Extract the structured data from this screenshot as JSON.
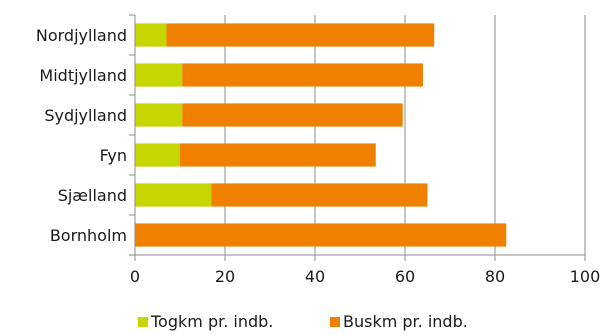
{
  "chart_data": {
    "type": "bar",
    "orientation": "horizontal",
    "stacked": true,
    "categories": [
      "Nordjylland",
      "Midtjylland",
      "Sydjylland",
      "Fyn",
      "Sjælland",
      "Bornholm"
    ],
    "series": [
      {
        "name": "Togkm pr. indb.",
        "color": "#c5d600",
        "values": [
          7,
          10.5,
          10.5,
          10,
          17,
          0
        ]
      },
      {
        "name": "Buskm pr. indb.",
        "color": "#f08000",
        "values": [
          59.5,
          53.5,
          49,
          43.5,
          48,
          82.5
        ]
      }
    ],
    "xlim": [
      0,
      100
    ],
    "xticks": [
      0,
      20,
      40,
      60,
      80,
      100
    ],
    "grid": "vertical",
    "legend": "bottom"
  }
}
